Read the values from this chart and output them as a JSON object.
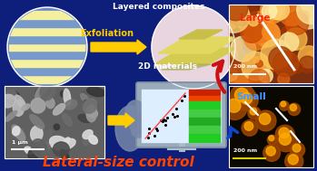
{
  "bg_color": "#0d1f7a",
  "title_text": "Lateral-size control",
  "title_color": "#ff4400",
  "title_fontsize": 11,
  "label_layered": "Layered composites",
  "label_exfoliation": "Exfoliation",
  "label_2d": "2D materials",
  "label_large": "Large",
  "label_small": "Small",
  "label_scale1": "200 nm",
  "label_scale2": "200 nm",
  "label_scale_sem": "1 μm",
  "text_color_white": "#ffffff",
  "text_color_yellow": "#ffcc00",
  "text_color_red": "#ff2200",
  "text_color_blue": "#4499ff",
  "arrow_color_yellow": "#ffcc00",
  "arrow_color_red": "#cc1111",
  "arrow_color_blue": "#1144cc",
  "figsize": [
    3.49,
    1.89
  ],
  "dpi": 100
}
